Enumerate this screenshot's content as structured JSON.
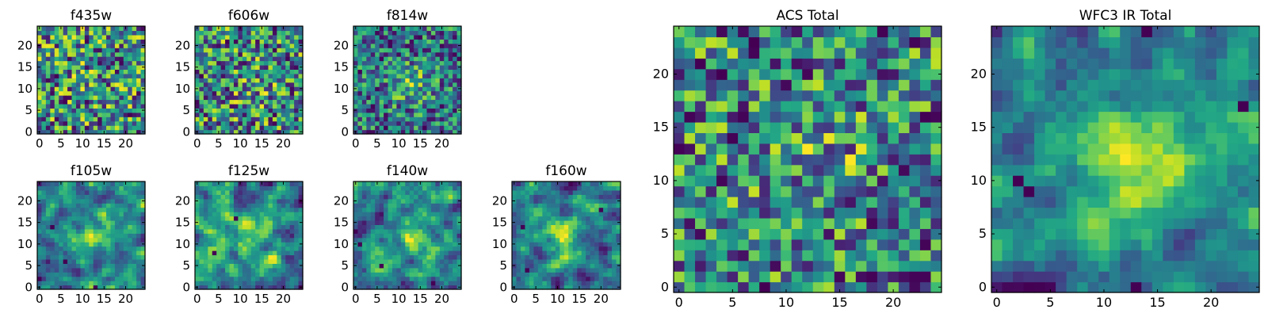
{
  "figure": {
    "description_colormap": "viridis",
    "background": "#ffffff"
  },
  "chart_data": [
    {
      "type": "heatmap",
      "title": "f435w",
      "grid_size": 25,
      "xlim": [
        0,
        24
      ],
      "ylim": [
        0,
        24
      ],
      "x_ticks": [
        0,
        5,
        10,
        15,
        20
      ],
      "y_ticks": [
        0,
        5,
        10,
        15,
        20
      ],
      "seed": 11,
      "smooth": 0,
      "peak": [
        12,
        14
      ],
      "peak_strength": 0.05,
      "lows": []
    },
    {
      "type": "heatmap",
      "title": "f606w",
      "grid_size": 25,
      "xlim": [
        0,
        24
      ],
      "ylim": [
        0,
        24
      ],
      "x_ticks": [
        0,
        5,
        10,
        15,
        20
      ],
      "y_ticks": [
        0,
        5,
        10,
        15,
        20
      ],
      "seed": 23,
      "smooth": 0,
      "peak": [
        13,
        11
      ],
      "peak_strength": 0.1,
      "lows": []
    },
    {
      "type": "heatmap",
      "title": "f814w",
      "grid_size": 25,
      "xlim": [
        0,
        24
      ],
      "ylim": [
        0,
        24
      ],
      "x_ticks": [
        0,
        5,
        10,
        15,
        20
      ],
      "y_ticks": [
        0,
        5,
        10,
        15,
        20
      ],
      "seed": 37,
      "smooth": 0,
      "peak": [
        13,
        11
      ],
      "peak_strength": 0.3,
      "lows": []
    },
    {
      "type": "heatmap",
      "title": "f105w",
      "grid_size": 25,
      "xlim": [
        0,
        24
      ],
      "ylim": [
        0,
        24
      ],
      "x_ticks": [
        0,
        5,
        10,
        15,
        20
      ],
      "y_ticks": [
        0,
        5,
        10,
        15,
        20
      ],
      "seed": 41,
      "smooth": 1,
      "peak": [
        13,
        12
      ],
      "peak_strength": 0.35,
      "lows": [
        [
          3,
          14
        ],
        [
          6,
          6
        ],
        [
          13,
          0
        ]
      ]
    },
    {
      "type": "heatmap",
      "title": "f125w",
      "grid_size": 25,
      "xlim": [
        0,
        24
      ],
      "ylim": [
        0,
        24
      ],
      "x_ticks": [
        0,
        5,
        10,
        15,
        20
      ],
      "y_ticks": [
        0,
        5,
        10,
        15,
        20
      ],
      "seed": 53,
      "smooth": 1,
      "peak": [
        13,
        12
      ],
      "peak_strength": 0.2,
      "lows": [
        [
          4,
          8
        ],
        [
          9,
          16
        ]
      ]
    },
    {
      "type": "heatmap",
      "title": "f140w",
      "grid_size": 25,
      "xlim": [
        0,
        24
      ],
      "ylim": [
        0,
        24
      ],
      "x_ticks": [
        0,
        5,
        10,
        15,
        20
      ],
      "y_ticks": [
        0,
        5,
        10,
        15,
        20
      ],
      "seed": 67,
      "smooth": 1,
      "peak": [
        14,
        12
      ],
      "peak_strength": 0.25,
      "lows": [
        [
          6,
          5
        ],
        [
          1,
          10
        ]
      ]
    },
    {
      "type": "heatmap",
      "title": "f160w",
      "grid_size": 25,
      "xlim": [
        0,
        24
      ],
      "ylim": [
        0,
        24
      ],
      "x_ticks": [
        0,
        5,
        10,
        15,
        20
      ],
      "y_ticks": [
        0,
        5,
        10,
        15,
        20
      ],
      "seed": 71,
      "smooth": 1,
      "peak": [
        12,
        12
      ],
      "peak_strength": 0.4,
      "lows": [
        [
          2,
          14
        ],
        [
          3,
          4
        ],
        [
          20,
          18
        ]
      ]
    },
    {
      "type": "heatmap",
      "title": "ACS Total",
      "grid_size": 25,
      "xlim": [
        0,
        24
      ],
      "ylim": [
        0,
        24
      ],
      "x_ticks": [
        0,
        5,
        10,
        15,
        20
      ],
      "y_ticks": [
        0,
        5,
        10,
        15,
        20
      ],
      "seed": 83,
      "smooth": 0,
      "peak": [
        13,
        12
      ],
      "peak_strength": 0.15,
      "lows": [
        [
          7,
          23
        ],
        [
          4,
          20
        ],
        [
          2,
          21
        ],
        [
          8,
          0
        ]
      ]
    },
    {
      "type": "heatmap",
      "title": "WFC3 IR Total",
      "grid_size": 25,
      "xlim": [
        0,
        24
      ],
      "ylim": [
        0,
        24
      ],
      "x_ticks": [
        0,
        5,
        10,
        15,
        20
      ],
      "y_ticks": [
        0,
        5,
        10,
        15,
        20
      ],
      "seed": 97,
      "smooth": 1,
      "peak": [
        13,
        12
      ],
      "peak_strength": 0.45,
      "lows": [
        [
          2,
          10
        ],
        [
          3,
          9
        ],
        [
          13,
          0
        ],
        [
          14,
          24
        ],
        [
          23,
          17
        ]
      ]
    }
  ]
}
